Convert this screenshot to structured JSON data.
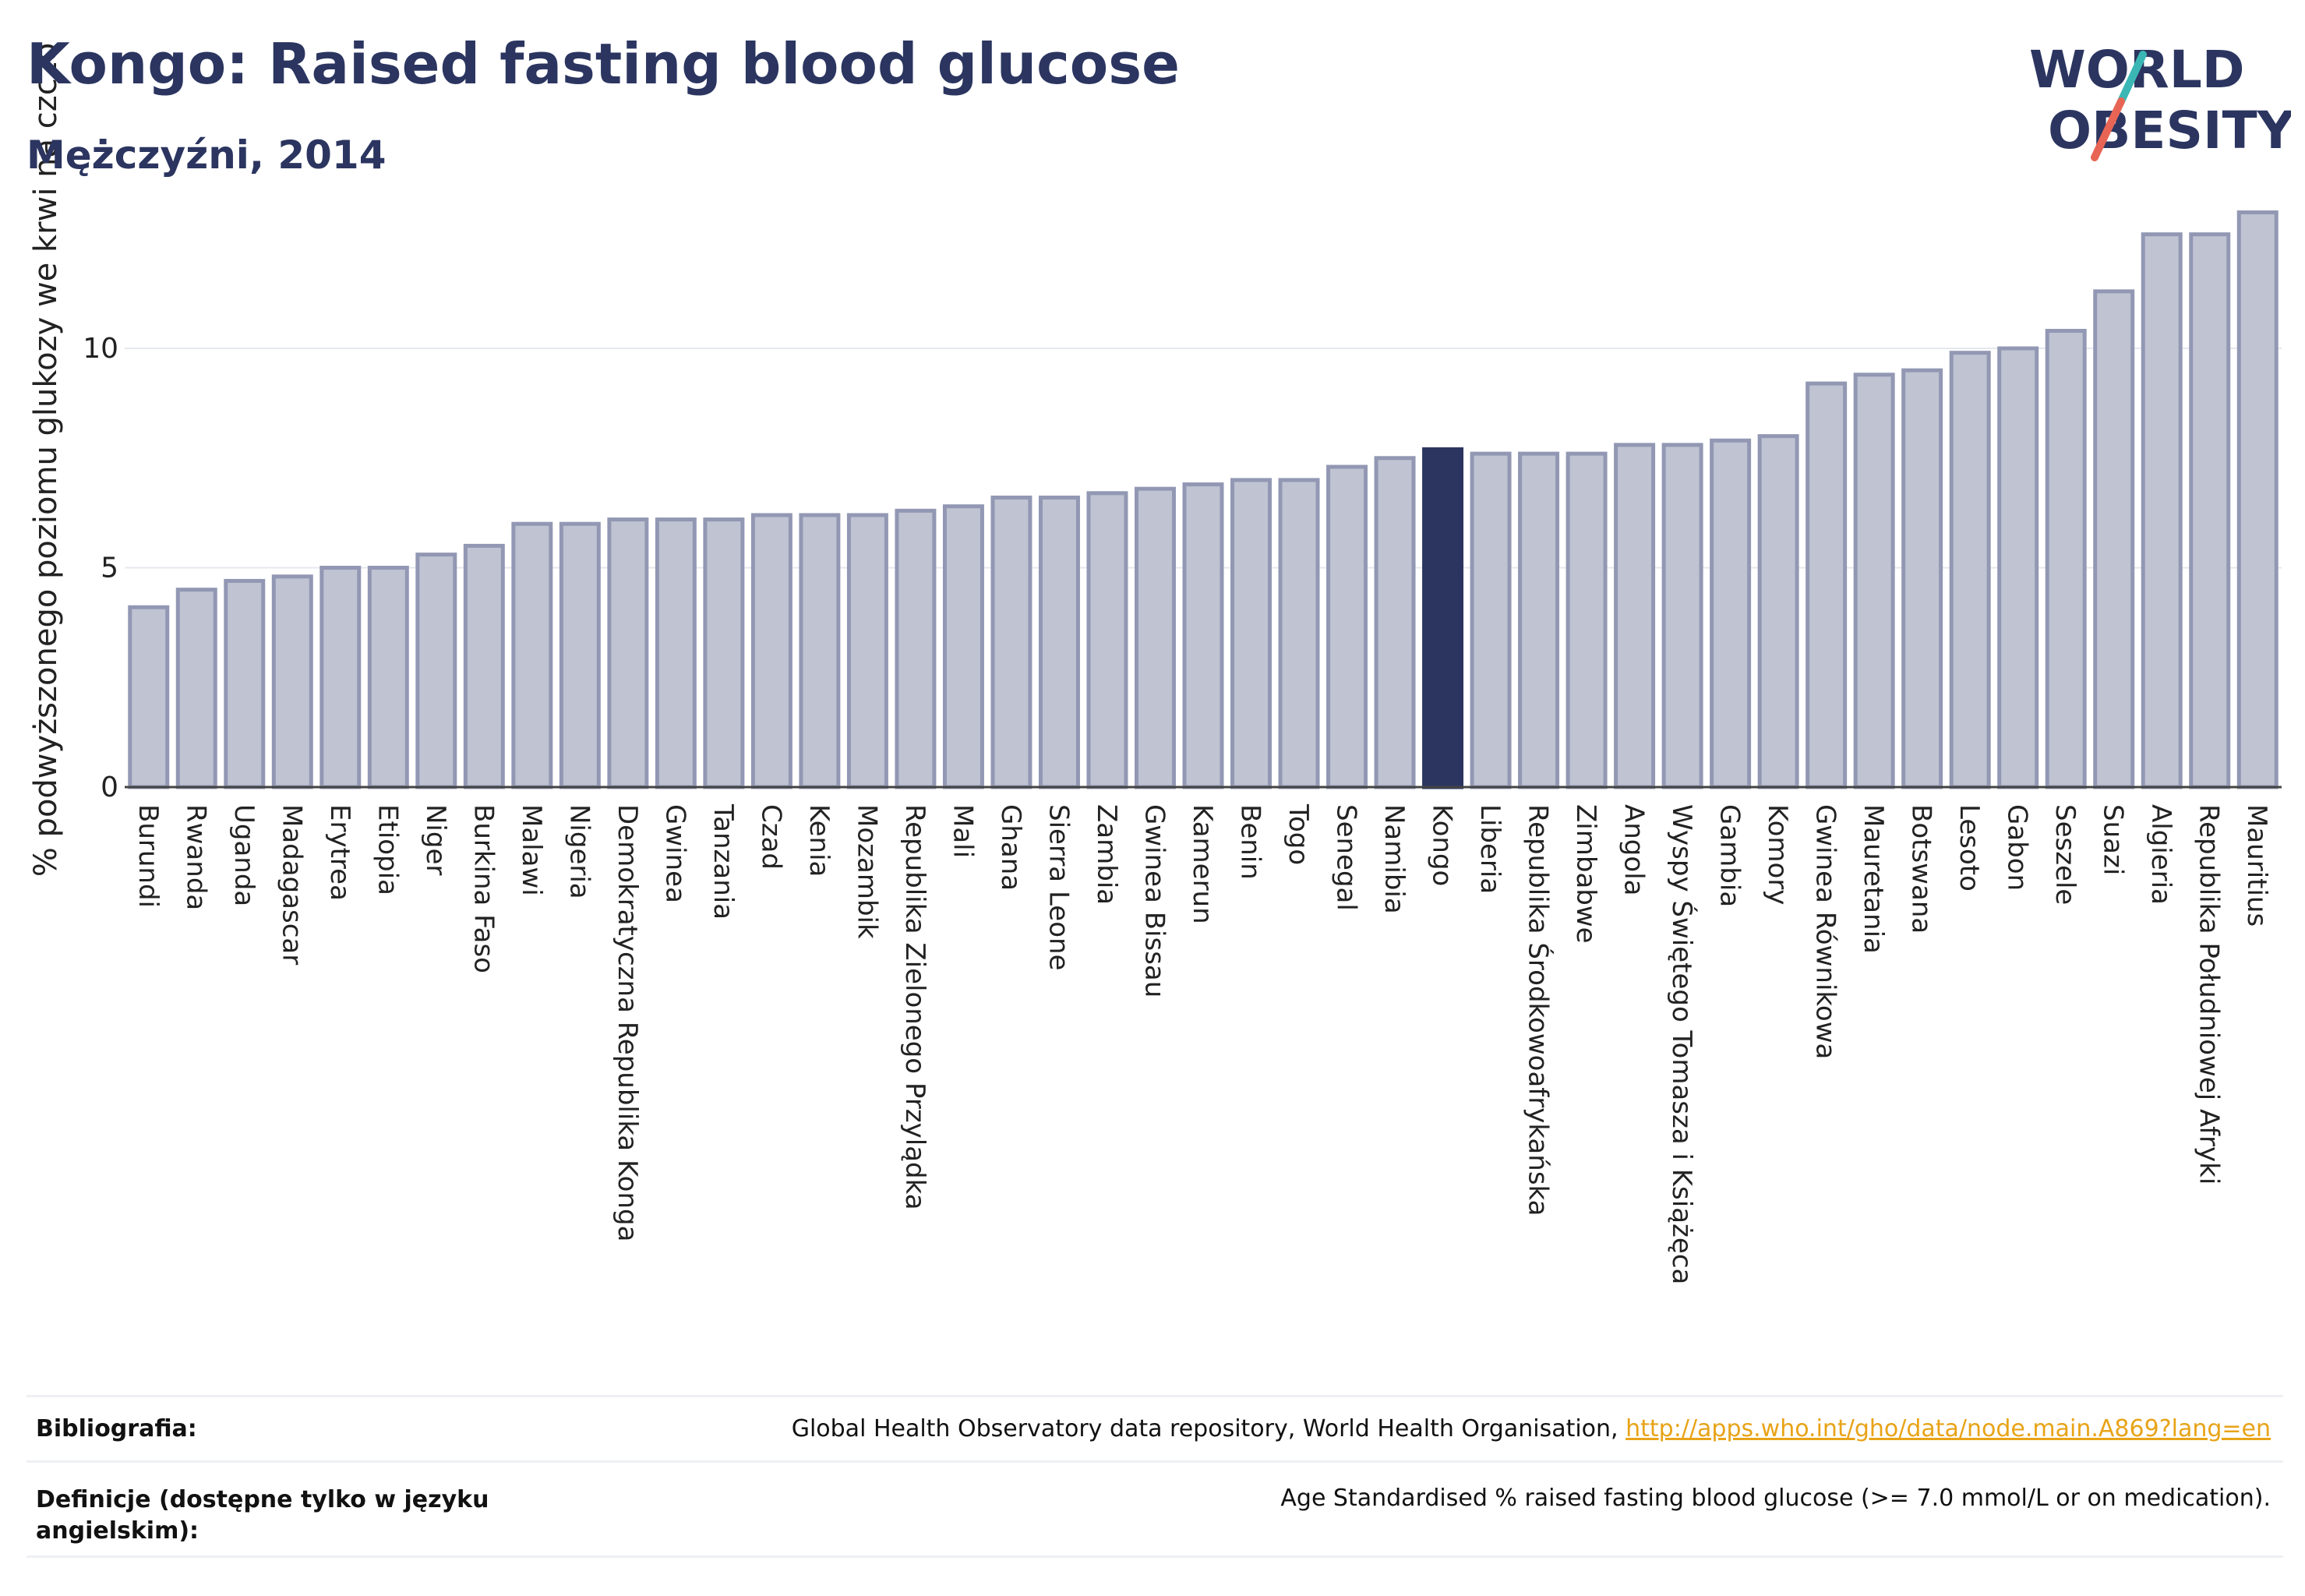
{
  "title": "Kongo: Raised fasting blood glucose",
  "subtitle": "Mężczyźni, 2014",
  "logo": {
    "line1": "WORLD",
    "line2": "OBESITY"
  },
  "colors": {
    "highlight": "#2b3560",
    "bar": "#bfc3d2",
    "bar_edge": "#9298b3",
    "title": "#2b3560",
    "link": "#e8a317"
  },
  "chart_data": {
    "type": "bar",
    "ylabel": "% podwyższonego poziomu glukozy we krwi na czczo",
    "ylim": [
      0,
      13.5
    ],
    "yticks": [
      0,
      5,
      10
    ],
    "grid": true,
    "highlight": "Kongo",
    "categories": [
      "Burundi",
      "Rwanda",
      "Uganda",
      "Madagascar",
      "Erytrea",
      "Etiopia",
      "Niger",
      "Burkina Faso",
      "Malawi",
      "Nigeria",
      "Demokratyczna Republika Konga",
      "Gwinea",
      "Tanzania",
      "Czad",
      "Kenia",
      "Mozambik",
      "Republika Zielonego Przylądka",
      "Mali",
      "Ghana",
      "Sierra Leone",
      "Zambia",
      "Gwinea Bissau",
      "Kamerun",
      "Benin",
      "Togo",
      "Senegal",
      "Namibia",
      "Kongo",
      "Liberia",
      "Republika Środkowoafrykańska",
      "Zimbabwe",
      "Angola",
      "Wyspy Świętego Tomasza i Książęca",
      "Gambia",
      "Komory",
      "Gwinea Równikowa",
      "Mauretania",
      "Botswana",
      "Lesoto",
      "Gabon",
      "Seszele",
      "Suazi",
      "Algieria",
      "Republika Południowej Afryki",
      "Mauritius"
    ],
    "values": [
      4.1,
      4.5,
      4.7,
      4.8,
      5.0,
      5.0,
      5.3,
      5.5,
      6.0,
      6.0,
      6.1,
      6.1,
      6.1,
      6.2,
      6.2,
      6.2,
      6.3,
      6.4,
      6.6,
      6.6,
      6.7,
      6.8,
      6.9,
      7.0,
      7.0,
      7.3,
      7.5,
      7.7,
      7.6,
      7.6,
      7.6,
      7.8,
      7.8,
      7.9,
      8.0,
      9.2,
      9.4,
      9.5,
      9.9,
      10.0,
      10.4,
      11.3,
      12.6,
      12.6,
      13.1
    ]
  },
  "footer": {
    "bibliography_label": "Bibliografia:",
    "bibliography_text": "Global Health Observatory data repository, World Health Organisation,",
    "bibliography_link": "http://apps.who.int/gho/data/node.main.A869?lang=en",
    "definitions_label": "Definicje (dostępne tylko w języku angielskim):",
    "definitions_text": "Age Standardised % raised fasting blood glucose (>= 7.0 mmol/L or on medication)."
  }
}
